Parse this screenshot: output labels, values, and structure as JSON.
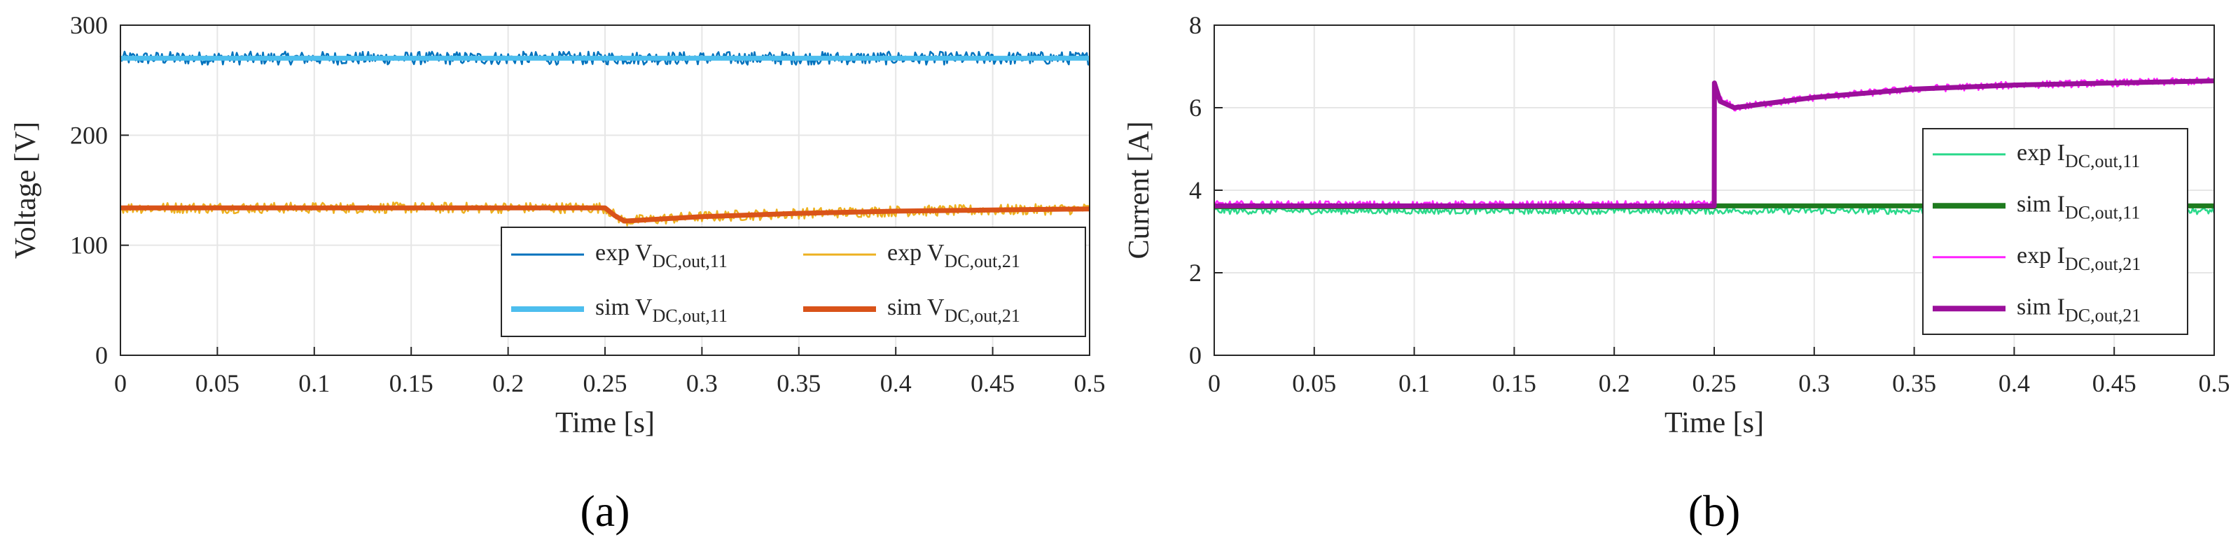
{
  "chart_data": [
    {
      "type": "line",
      "panel_label": "(a)",
      "xlabel": "Time [s]",
      "ylabel": "Voltage [V]",
      "xlim": [
        0,
        0.5
      ],
      "ylim": [
        0,
        300
      ],
      "xticks": [
        0,
        0.05,
        0.1,
        0.15,
        0.2,
        0.25,
        0.3,
        0.35,
        0.4,
        0.45,
        0.5
      ],
      "xtick_labels": [
        "0",
        "0.05",
        "0.1",
        "0.15",
        "0.2",
        "0.25",
        "0.3",
        "0.35",
        "0.4",
        "0.45",
        "0.5"
      ],
      "yticks": [
        0,
        100,
        200,
        300
      ],
      "ytick_labels": [
        "0",
        "100",
        "200",
        "300"
      ],
      "grid": true,
      "legend_position": "bottom-right",
      "legend_columns": 2,
      "series": [
        {
          "name": "exp V_DC,out,11",
          "legend_main": "exp V",
          "legend_sub": "DC,out,11",
          "color": "#0072BD",
          "kind": "exp",
          "noise": 6,
          "x": [
            0,
            0.5
          ],
          "y": [
            270,
            270
          ]
        },
        {
          "name": "exp V_DC,out,21",
          "legend_main": "exp V",
          "legend_sub": "DC,out,21",
          "color": "#EDB120",
          "kind": "exp",
          "noise": 5,
          "x": [
            0,
            0.25,
            0.255,
            0.26,
            0.3,
            0.35,
            0.4,
            0.45,
            0.5
          ],
          "y": [
            134,
            134,
            127,
            122,
            126,
            129,
            131,
            132,
            133
          ]
        },
        {
          "name": "sim V_DC,out,11",
          "legend_main": "sim V",
          "legend_sub": "DC,out,11",
          "color": "#4DBEEE",
          "kind": "sim",
          "noise": 0,
          "x": [
            0,
            0.5
          ],
          "y": [
            270,
            270
          ]
        },
        {
          "name": "sim V_DC,out,21",
          "legend_main": "sim V",
          "legend_sub": "DC,out,21",
          "color": "#D95319",
          "kind": "sim",
          "noise": 0,
          "x": [
            0,
            0.25,
            0.255,
            0.26,
            0.3,
            0.35,
            0.4,
            0.45,
            0.5
          ],
          "y": [
            134,
            134,
            127,
            122,
            126,
            129,
            131,
            132,
            133
          ]
        }
      ]
    },
    {
      "type": "line",
      "panel_label": "(b)",
      "xlabel": "Time [s]",
      "ylabel": "Current [A]",
      "xlim": [
        0,
        0.5
      ],
      "ylim": [
        0,
        8
      ],
      "xticks": [
        0,
        0.05,
        0.1,
        0.15,
        0.2,
        0.25,
        0.3,
        0.35,
        0.4,
        0.45,
        0.5
      ],
      "xtick_labels": [
        "0",
        "0.05",
        "0.1",
        "0.15",
        "0.2",
        "0.25",
        "0.3",
        "0.35",
        "0.4",
        "0.45",
        "0.5"
      ],
      "yticks": [
        0,
        2,
        4,
        6,
        8
      ],
      "ytick_labels": [
        "0",
        "2",
        "4",
        "6",
        "8"
      ],
      "grid": true,
      "legend_position": "right",
      "legend_columns": 1,
      "series": [
        {
          "name": "exp I_DC,out,11",
          "legend_main": "exp I",
          "legend_sub": "DC,out,11",
          "color": "#2BD98B",
          "kind": "exp",
          "noise": 0.08,
          "x": [
            0,
            0.5
          ],
          "y": [
            3.5,
            3.5
          ]
        },
        {
          "name": "sim I_DC,out,11",
          "legend_main": "sim I",
          "legend_sub": "DC,out,11",
          "color": "#1E7B1E",
          "kind": "sim",
          "noise": 0,
          "x": [
            0,
            0.25,
            0.2501,
            0.5
          ],
          "y": [
            3.6,
            3.6,
            3.62,
            3.62
          ]
        },
        {
          "name": "exp I_DC,out,21",
          "legend_main": "exp I",
          "legend_sub": "DC,out,21",
          "color": "#FF22FF",
          "kind": "exp",
          "noise": 0.09,
          "x": [
            0,
            0.25,
            0.2501,
            0.253,
            0.26,
            0.3,
            0.35,
            0.4,
            0.45,
            0.5
          ],
          "y": [
            3.65,
            3.65,
            6.6,
            6.2,
            6.0,
            6.25,
            6.45,
            6.55,
            6.6,
            6.65
          ]
        },
        {
          "name": "sim I_DC,out,21",
          "legend_main": "sim I",
          "legend_sub": "DC,out,21",
          "color": "#9B0F9B",
          "kind": "sim",
          "noise": 0,
          "x": [
            0,
            0.25,
            0.2501,
            0.253,
            0.26,
            0.3,
            0.35,
            0.4,
            0.45,
            0.5
          ],
          "y": [
            3.62,
            3.62,
            6.6,
            6.15,
            6.0,
            6.25,
            6.45,
            6.55,
            6.6,
            6.65
          ]
        }
      ]
    }
  ]
}
